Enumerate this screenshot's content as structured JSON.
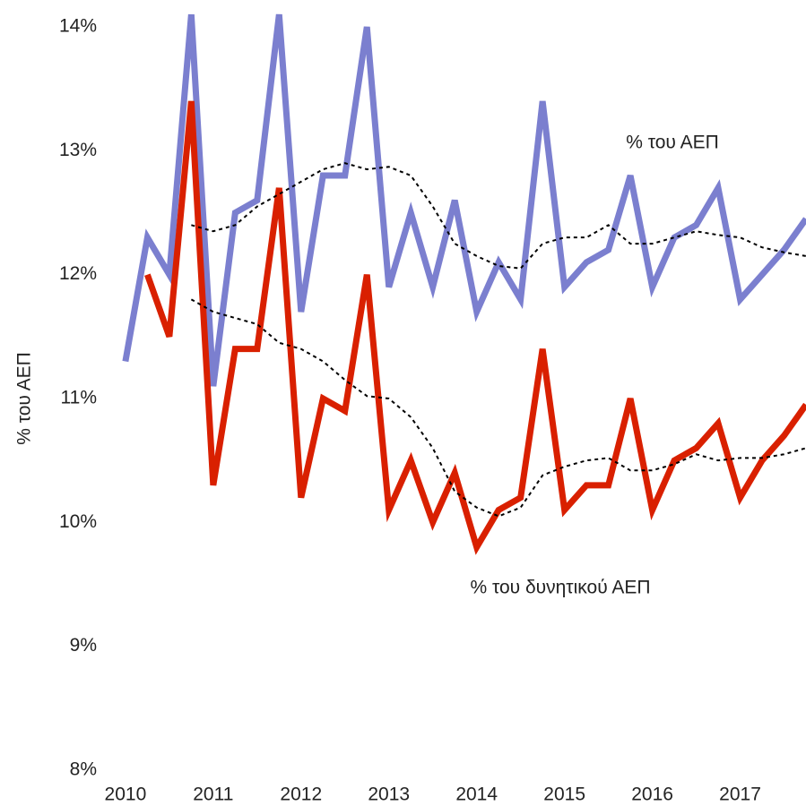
{
  "chart_data": {
    "type": "line",
    "y_label": "% του ΑΕΠ",
    "x": [
      2010,
      2010.25,
      2010.5,
      2010.75,
      2011,
      2011.25,
      2011.5,
      2011.75,
      2012,
      2012.25,
      2012.5,
      2012.75,
      2013,
      2013.25,
      2013.5,
      2013.75,
      2014,
      2014.25,
      2014.5,
      2014.75,
      2015,
      2015.25,
      2015.5,
      2015.75,
      2016,
      2016.25,
      2016.5,
      2016.75,
      2017,
      2017.25,
      2017.5,
      2017.75
    ],
    "series": [
      {
        "name": "% του ΑΕΠ",
        "color": "#7b7fcf",
        "width": 7,
        "dashed": false,
        "values": [
          11.3,
          12.3,
          12.0,
          14.1,
          11.1,
          12.5,
          12.6,
          14.1,
          11.7,
          12.8,
          12.8,
          14.0,
          11.9,
          12.5,
          11.9,
          12.6,
          11.7,
          12.1,
          11.8,
          13.4,
          11.9,
          12.1,
          12.2,
          12.8,
          11.9,
          12.3,
          12.4,
          12.7,
          11.8,
          12.0,
          12.2,
          12.45
        ]
      },
      {
        "name": "% του δυνητικού ΑΕΠ",
        "color": "#d92000",
        "width": 7,
        "dashed": false,
        "values": [
          null,
          12.0,
          11.5,
          13.4,
          10.3,
          11.4,
          11.4,
          12.7,
          10.2,
          11.0,
          10.9,
          12.0,
          10.1,
          10.5,
          10.0,
          10.4,
          9.8,
          10.1,
          10.2,
          11.4,
          10.1,
          10.3,
          10.3,
          11.0,
          10.1,
          10.5,
          10.6,
          10.8,
          10.2,
          10.5,
          10.7,
          10.95
        ]
      },
      {
        "color": "#000000",
        "width": 2,
        "dashed": true,
        "values": [
          null,
          null,
          null,
          12.4,
          12.35,
          12.4,
          12.55,
          12.65,
          12.75,
          12.85,
          12.9,
          12.85,
          12.87,
          12.8,
          12.55,
          12.25,
          12.15,
          12.07,
          12.05,
          12.25,
          12.3,
          12.3,
          12.4,
          12.25,
          12.25,
          12.3,
          12.35,
          12.32,
          12.3,
          12.22,
          12.18,
          12.15
        ]
      },
      {
        "color": "#000000",
        "width": 2,
        "dashed": true,
        "values": [
          null,
          null,
          null,
          11.8,
          11.7,
          11.65,
          11.6,
          11.45,
          11.4,
          11.3,
          11.15,
          11.02,
          11.0,
          10.85,
          10.6,
          10.25,
          10.12,
          10.05,
          10.12,
          10.38,
          10.45,
          10.5,
          10.52,
          10.42,
          10.42,
          10.47,
          10.55,
          10.5,
          10.52,
          10.52,
          10.55,
          10.6
        ]
      }
    ],
    "xlim": [
      2009.95,
      2017.75
    ],
    "xticks": [
      2010,
      2011,
      2012,
      2013,
      2014,
      2015,
      2016,
      2017
    ],
    "ylim": [
      8,
      14
    ],
    "yticks": [
      {
        "value": 8,
        "label": "8%"
      },
      {
        "value": 9,
        "label": "9%"
      },
      {
        "value": 10,
        "label": "10%"
      },
      {
        "value": 11,
        "label": "11%"
      },
      {
        "value": 12,
        "label": "12%"
      },
      {
        "value": 13,
        "label": "13%"
      },
      {
        "value": 14,
        "label": "14%"
      }
    ],
    "grid": false
  }
}
